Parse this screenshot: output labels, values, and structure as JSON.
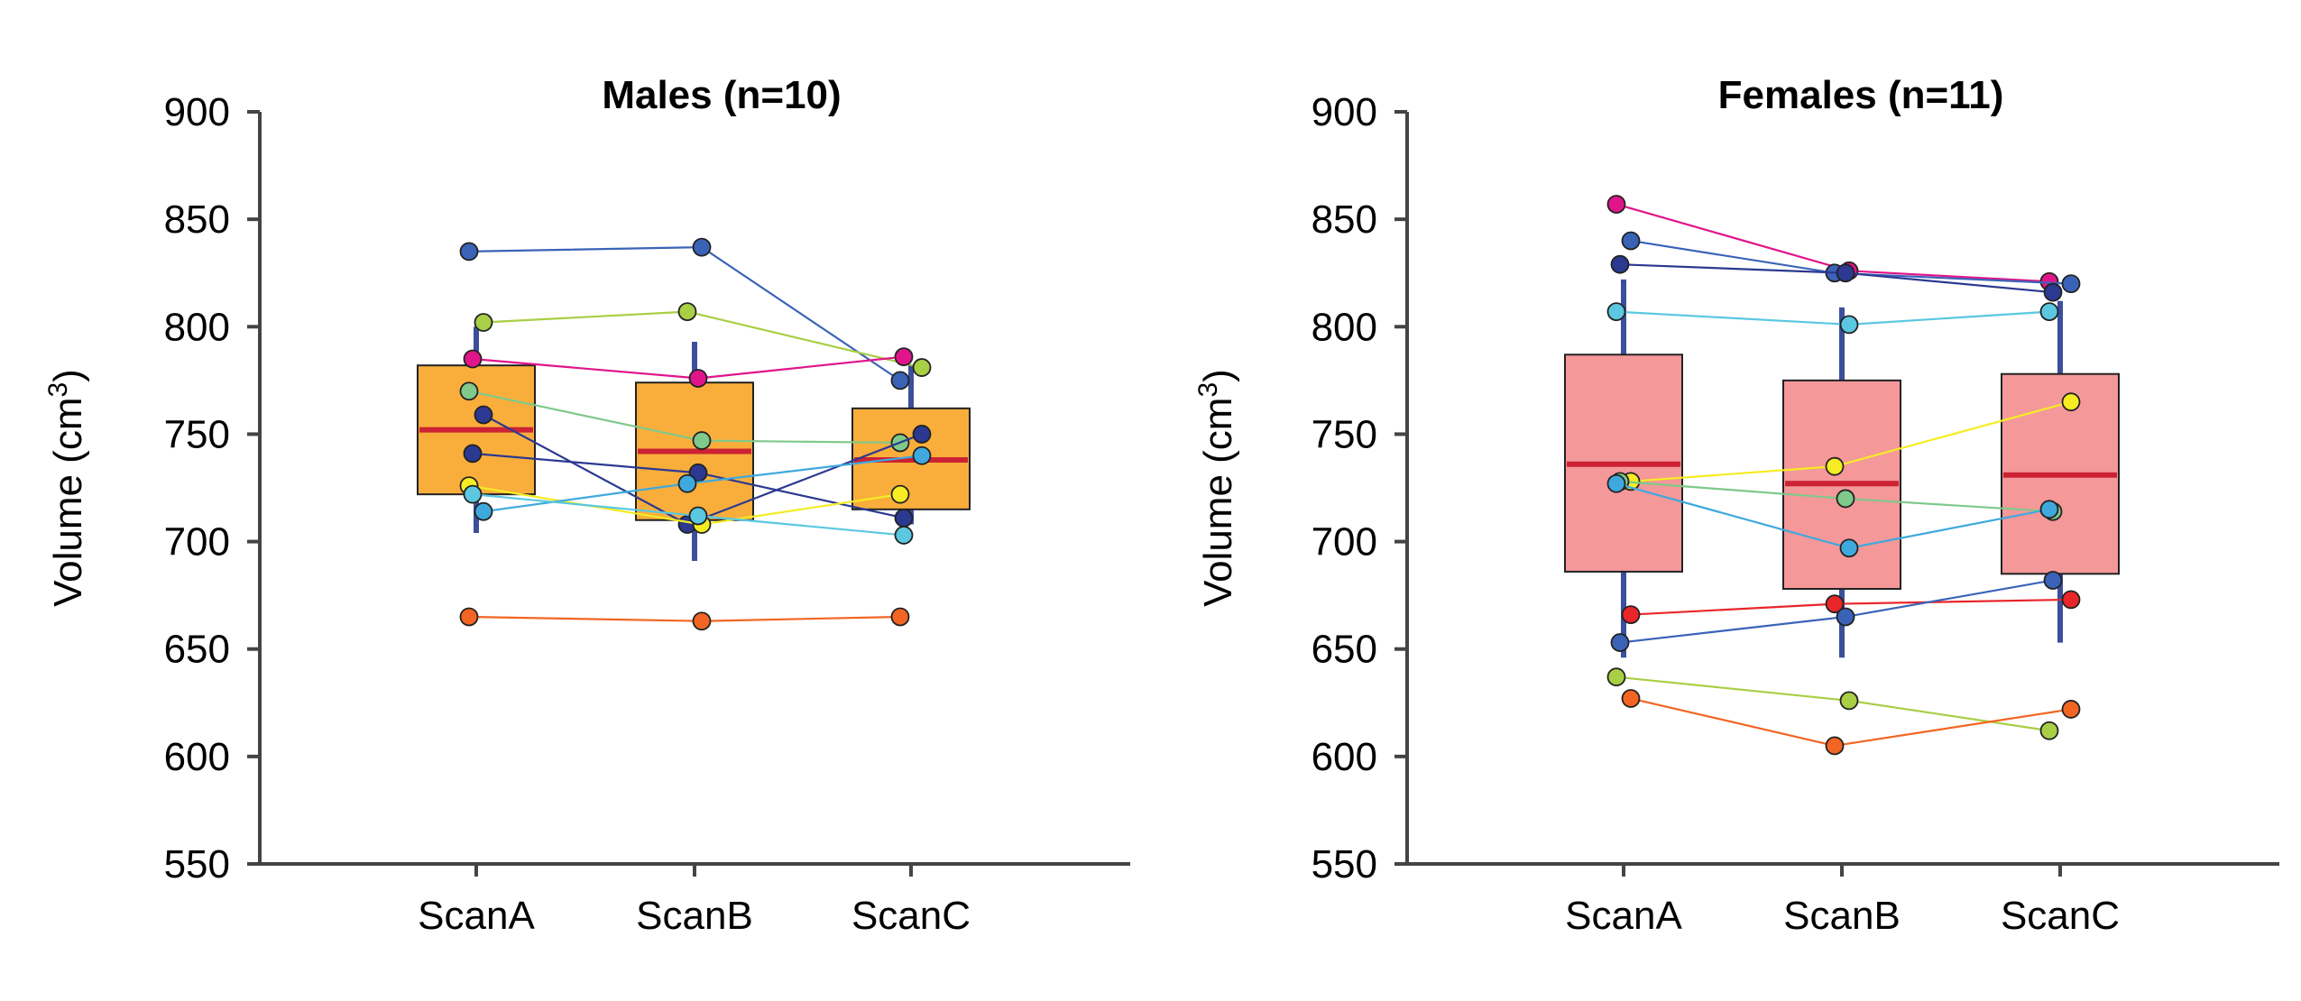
{
  "chart_data": [
    {
      "type": "box",
      "title": "Males (n=10)",
      "ylabel": "Volume (cm",
      "ylabel_sup": "3",
      "ylabel_close": ")",
      "ylim": [
        550,
        900
      ],
      "yticks": [
        "900",
        "850",
        "800",
        "750",
        "700",
        "650",
        "600",
        "550"
      ],
      "categories": [
        "ScanA",
        "ScanB",
        "ScanC"
      ],
      "box_color": "#F9AE3C",
      "median_color": "#CC2233",
      "whisker_color": "#3B4F9A",
      "boxes": [
        {
          "whisker_low": 704,
          "q1": 722,
          "median": 752,
          "q3": 782,
          "whisker_high": 800
        },
        {
          "whisker_low": 691,
          "q1": 710,
          "median": 742,
          "q3": 774,
          "whisker_high": 793
        },
        {
          "whisker_low": 708,
          "q1": 715,
          "median": 738,
          "q3": 762,
          "whisker_high": 782
        }
      ],
      "subjects": [
        {
          "color": "#3A63B8",
          "values": [
            835,
            837,
            775
          ]
        },
        {
          "color": "#A8CF45",
          "values": [
            802,
            807,
            781
          ]
        },
        {
          "color": "#E0158A",
          "values": [
            785,
            776,
            786
          ]
        },
        {
          "color": "#7FC98A",
          "values": [
            770,
            747,
            746
          ]
        },
        {
          "color": "#2B3990",
          "values": [
            759,
            708,
            750
          ]
        },
        {
          "color": "#2B3990",
          "values": [
            741,
            732,
            711
          ]
        },
        {
          "color": "#F5EC23",
          "values": [
            726,
            708,
            722
          ]
        },
        {
          "color": "#3FA9DD",
          "values": [
            714,
            727,
            740
          ]
        },
        {
          "color": "#5BC7E0",
          "values": [
            722,
            712,
            703
          ]
        },
        {
          "color": "#F26522",
          "values": [
            665,
            663,
            665
          ]
        }
      ]
    },
    {
      "type": "box",
      "title": "Females (n=11)",
      "ylabel": "Volume (cm",
      "ylabel_sup": "3",
      "ylabel_close": ")",
      "ylim": [
        550,
        900
      ],
      "yticks": [
        "900",
        "850",
        "800",
        "750",
        "700",
        "650",
        "600",
        "550"
      ],
      "categories": [
        "ScanA",
        "ScanB",
        "ScanC"
      ],
      "box_color": "#F4989A",
      "median_color": "#CC2233",
      "whisker_color": "#3B4F9A",
      "boxes": [
        {
          "whisker_low": 646,
          "q1": 686,
          "median": 736,
          "q3": 787,
          "whisker_high": 822
        },
        {
          "whisker_low": 646,
          "q1": 678,
          "median": 727,
          "q3": 775,
          "whisker_high": 809
        },
        {
          "whisker_low": 653,
          "q1": 685,
          "median": 731,
          "q3": 778,
          "whisker_high": 812
        }
      ],
      "subjects": [
        {
          "color": "#E0158A",
          "values": [
            857,
            826,
            821
          ]
        },
        {
          "color": "#3A63B8",
          "values": [
            840,
            825,
            820
          ]
        },
        {
          "color": "#2B3990",
          "values": [
            829,
            825,
            816
          ]
        },
        {
          "color": "#5BC7E0",
          "values": [
            807,
            801,
            807
          ]
        },
        {
          "color": "#F5EC23",
          "values": [
            728,
            735,
            765
          ]
        },
        {
          "color": "#7FC98A",
          "values": [
            728,
            720,
            714
          ]
        },
        {
          "color": "#3FA9DD",
          "values": [
            727,
            697,
            715
          ]
        },
        {
          "color": "#E8262A",
          "values": [
            666,
            671,
            673
          ]
        },
        {
          "color": "#3A63B8",
          "values": [
            653,
            665,
            682
          ]
        },
        {
          "color": "#A8CF45",
          "values": [
            637,
            626,
            612
          ]
        },
        {
          "color": "#F26522",
          "values": [
            627,
            605,
            622
          ]
        }
      ]
    }
  ]
}
